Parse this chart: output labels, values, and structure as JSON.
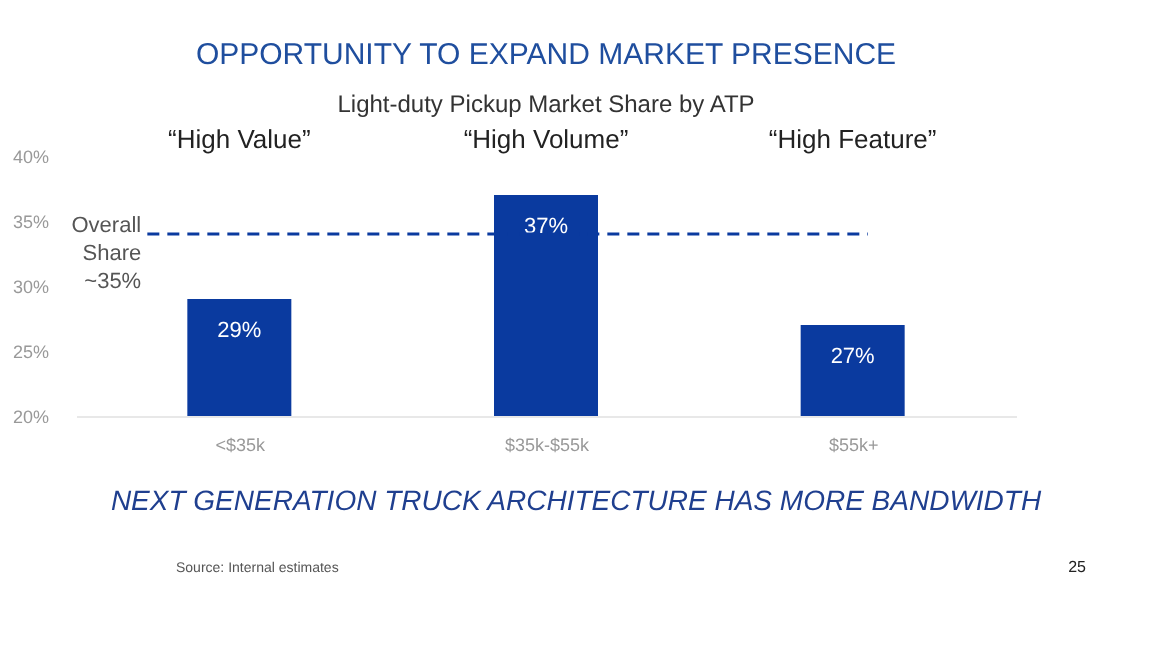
{
  "chart_data": {
    "type": "bar",
    "title": "OPPORTUNITY TO EXPAND MARKET PRESENCE",
    "subtitle": "Light-duty Pickup Market Share by ATP",
    "categories": [
      "<$35k",
      "$35k-$55k",
      "$55k+"
    ],
    "values": [
      29,
      37,
      27
    ],
    "value_labels": [
      "29%",
      "37%",
      "27%"
    ],
    "color": "#0a3a9f",
    "ylim": [
      20,
      40
    ],
    "yticks": [
      {
        "value": 20,
        "label": "20%"
      },
      {
        "value": 25,
        "label": "25%"
      },
      {
        "value": 30,
        "label": "30%"
      },
      {
        "value": 35,
        "label": "35%"
      },
      {
        "value": 40,
        "label": "40%"
      }
    ],
    "ref_lines": [
      {
        "axis": "y",
        "value": 34,
        "label": "Overall Share ~35%",
        "color": "#0a3a9f",
        "line_style": "dashed"
      }
    ],
    "annotations": [
      "“High Value”",
      "“High Volume”",
      "“High Feature”",
      "NEXT GENERATION TRUCK ARCHITECTURE HAS MORE BANDWIDTH",
      "Source: Internal estimates",
      "25"
    ],
    "grid": false
  }
}
